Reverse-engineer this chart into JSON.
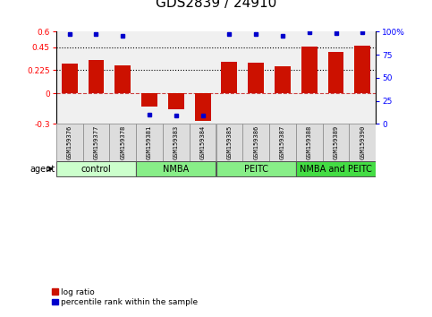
{
  "title": "GDS2839 / 24910",
  "samples": [
    "GSM159376",
    "GSM159377",
    "GSM159378",
    "GSM159381",
    "GSM159383",
    "GSM159384",
    "GSM159385",
    "GSM159386",
    "GSM159387",
    "GSM159388",
    "GSM159389",
    "GSM159390"
  ],
  "log_ratio": [
    0.285,
    0.32,
    0.275,
    -0.13,
    -0.155,
    -0.27,
    0.305,
    0.295,
    0.265,
    0.455,
    0.4,
    0.465
  ],
  "percentile_rank": [
    97,
    97,
    96,
    10,
    9,
    9,
    97,
    97,
    96,
    99,
    98,
    99
  ],
  "groups": [
    {
      "label": "control",
      "start": 0,
      "end": 3,
      "color": "#ccffcc"
    },
    {
      "label": "NMBA",
      "start": 3,
      "end": 6,
      "color": "#88ee88"
    },
    {
      "label": "PEITC",
      "start": 6,
      "end": 9,
      "color": "#88ee88"
    },
    {
      "label": "NMBA and PEITC",
      "start": 9,
      "end": 12,
      "color": "#44dd44"
    }
  ],
  "bar_color": "#cc1100",
  "blue_color": "#0000cc",
  "ylim_left": [
    -0.3,
    0.6
  ],
  "ylim_right": [
    0,
    100
  ],
  "yticks_left": [
    -0.3,
    0,
    0.225,
    0.45,
    0.6
  ],
  "yticks_right": [
    0,
    25,
    50,
    75,
    100
  ],
  "hlines": [
    0.225,
    0.45
  ],
  "bar_width": 0.6,
  "title_fontsize": 11,
  "tick_fontsize": 6.5,
  "sample_fontsize": 5,
  "group_fontsize": 7,
  "legend_fontsize": 6.5
}
